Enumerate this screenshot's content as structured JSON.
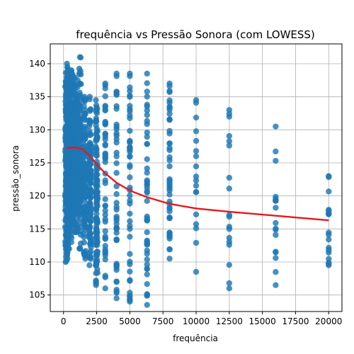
{
  "chart_data": {
    "type": "scatter",
    "title": "frequência vs Pressão Sonora (com LOWESS)",
    "xlabel": "frequência",
    "ylabel": "pressão_sonora",
    "xlim": [
      -1000,
      21000
    ],
    "ylim": [
      102.5,
      143
    ],
    "xticks": [
      0,
      2500,
      5000,
      7500,
      10000,
      12500,
      15000,
      17500,
      20000
    ],
    "yticks": [
      105,
      110,
      115,
      120,
      125,
      130,
      135,
      140
    ],
    "grid": true,
    "point_color": "#1f77b4",
    "line_color": "#e31a1c",
    "scatter_columns": [
      {
        "x": 200,
        "y_min": 110,
        "y_max": 140,
        "density": "dense"
      },
      {
        "x": 250,
        "y_min": 112,
        "y_max": 139.5,
        "density": "dense"
      },
      {
        "x": 315,
        "y_min": 110.5,
        "y_max": 139,
        "density": "dense"
      },
      {
        "x": 400,
        "y_min": 112,
        "y_max": 138.5,
        "density": "dense"
      },
      {
        "x": 500,
        "y_min": 114,
        "y_max": 138,
        "density": "dense"
      },
      {
        "x": 630,
        "y_min": 113,
        "y_max": 139,
        "density": "dense"
      },
      {
        "x": 800,
        "y_min": 114.5,
        "y_max": 138,
        "density": "dense"
      },
      {
        "x": 1000,
        "y_min": 114.5,
        "y_max": 137.5,
        "density": "dense"
      },
      {
        "x": 1250,
        "y_min": 112,
        "y_max": 141,
        "density": "dense"
      },
      {
        "x": 1600,
        "y_min": 110.5,
        "y_max": 135,
        "density": "dense"
      },
      {
        "x": 2000,
        "y_min": 109.5,
        "y_max": 135,
        "density": "dense"
      },
      {
        "x": 2500,
        "y_min": 106.5,
        "y_max": 134.5,
        "density": "dense"
      },
      {
        "x": 3150,
        "y_min": 106,
        "y_max": 137,
        "density": "medium"
      },
      {
        "x": 4000,
        "y_min": 104.5,
        "y_max": 138.5,
        "density": "medium"
      },
      {
        "x": 5000,
        "y_min": 104,
        "y_max": 138.5,
        "density": "medium"
      },
      {
        "x": 6300,
        "y_min": 103.5,
        "y_max": 138.5,
        "density": "medium"
      },
      {
        "x": 8000,
        "y_min": 110.5,
        "y_max": 137,
        "density": "medium"
      },
      {
        "x": 10000,
        "y_min": 108.5,
        "y_max": 134.5,
        "density": "sparse"
      },
      {
        "x": 12500,
        "y_min": 106,
        "y_max": 133,
        "density": "sparse"
      },
      {
        "x": 16000,
        "y_min": 106.5,
        "y_max": 130.5,
        "density": "sparse"
      },
      {
        "x": 20000,
        "y_min": 109.5,
        "y_max": 123,
        "density": "sparse"
      }
    ],
    "series": [
      {
        "type": "line",
        "x": [
          200,
          500,
          1000,
          1500,
          2000,
          2500,
          3150,
          4000,
          5000,
          6300,
          8000,
          10000,
          12500,
          16000,
          20000
        ],
        "y": [
          127.2,
          127.3,
          127.3,
          127.0,
          126.0,
          124.8,
          123.4,
          122.0,
          120.8,
          119.8,
          118.8,
          118.1,
          117.6,
          117.0,
          116.3
        ]
      }
    ]
  }
}
